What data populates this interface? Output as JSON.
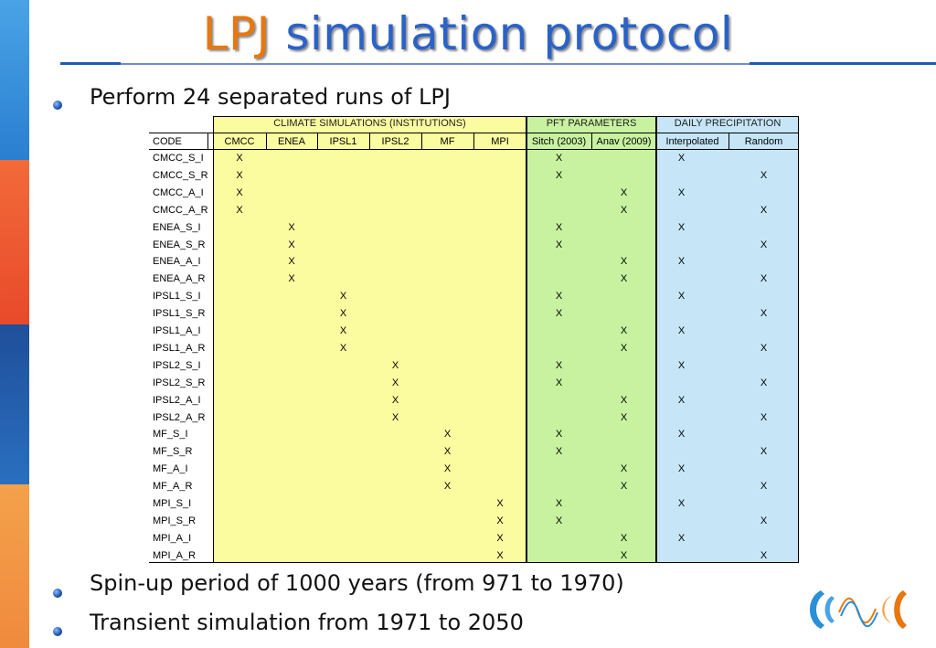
{
  "title": {
    "part1": "LPJ",
    "part2": "simulation protocol"
  },
  "bullets": [
    "Perform 24 separated runs of LPJ",
    "Spin-up period of 1000 years (from 971 to 1970)",
    "Transient simulation from 1971 to 2050"
  ],
  "table": {
    "groups": [
      "CLIMATE SIMULATIONS (INSTITUTIONS)",
      "PFT PARAMETERS",
      "DAILY PRECIPITATION"
    ],
    "code_header": "CODE",
    "columns": [
      "CMCC",
      "ENEA",
      "IPSL1",
      "IPSL2",
      "MF",
      "MPI",
      "Sitch (2003)",
      "Anav (2009)",
      "Interpolated",
      "Random"
    ],
    "mark": "X",
    "rows": [
      {
        "code": "CMCC_S_I",
        "marks": [
          0,
          6,
          8
        ]
      },
      {
        "code": "CMCC_S_R",
        "marks": [
          0,
          6,
          9
        ]
      },
      {
        "code": "CMCC_A_I",
        "marks": [
          0,
          7,
          8
        ]
      },
      {
        "code": "CMCC_A_R",
        "marks": [
          0,
          7,
          9
        ]
      },
      {
        "code": "ENEA_S_I",
        "marks": [
          1,
          6,
          8
        ]
      },
      {
        "code": "ENEA_S_R",
        "marks": [
          1,
          6,
          9
        ]
      },
      {
        "code": "ENEA_A_I",
        "marks": [
          1,
          7,
          8
        ]
      },
      {
        "code": "ENEA_A_R",
        "marks": [
          1,
          7,
          9
        ]
      },
      {
        "code": "IPSL1_S_I",
        "marks": [
          2,
          6,
          8
        ]
      },
      {
        "code": "IPSL1_S_R",
        "marks": [
          2,
          6,
          9
        ]
      },
      {
        "code": "IPSL1_A_I",
        "marks": [
          2,
          7,
          8
        ]
      },
      {
        "code": "IPSL1_A_R",
        "marks": [
          2,
          7,
          9
        ]
      },
      {
        "code": "IPSL2_S_I",
        "marks": [
          3,
          6,
          8
        ]
      },
      {
        "code": "IPSL2_S_R",
        "marks": [
          3,
          6,
          9
        ]
      },
      {
        "code": "IPSL2_A_I",
        "marks": [
          3,
          7,
          8
        ]
      },
      {
        "code": "IPSL2_A_R",
        "marks": [
          3,
          7,
          9
        ]
      },
      {
        "code": "MF_S_I",
        "marks": [
          4,
          6,
          8
        ]
      },
      {
        "code": "MF_S_R",
        "marks": [
          4,
          6,
          9
        ]
      },
      {
        "code": "MF_A_I",
        "marks": [
          4,
          7,
          8
        ]
      },
      {
        "code": "MF_A_R",
        "marks": [
          4,
          7,
          9
        ]
      },
      {
        "code": "MPI_S_I",
        "marks": [
          5,
          6,
          8
        ]
      },
      {
        "code": "MPI_S_R",
        "marks": [
          5,
          6,
          9
        ]
      },
      {
        "code": "MPI_A_I",
        "marks": [
          5,
          7,
          8
        ]
      },
      {
        "code": "MPI_A_R",
        "marks": [
          5,
          7,
          9
        ]
      }
    ]
  },
  "colors": {
    "title_orange": "#e8770f",
    "title_blue": "#2a62c8",
    "climate_bg": "#fbfba0",
    "pft_bg": "#c8f2a0",
    "precip_bg": "#c6e6f8",
    "stripe": [
      "#f6a04a",
      "#2a8fd8",
      "#e84a2a",
      "#1f4f9a",
      "#f4a14c",
      "#2a8fd8",
      "#f08a3c"
    ]
  },
  "logo": {
    "icon": "cmcc-wave-logo-icon"
  }
}
